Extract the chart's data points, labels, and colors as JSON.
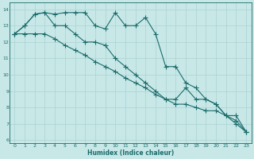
{
  "xlabel": "Humidex (Indice chaleur)",
  "xlim": [
    -0.5,
    23.5
  ],
  "ylim": [
    5.8,
    14.4
  ],
  "yticks": [
    6,
    7,
    8,
    9,
    10,
    11,
    12,
    13,
    14
  ],
  "xticks": [
    0,
    1,
    2,
    3,
    4,
    5,
    6,
    7,
    8,
    9,
    10,
    11,
    12,
    13,
    14,
    15,
    16,
    17,
    18,
    19,
    20,
    21,
    22,
    23
  ],
  "bg_color": "#c8e8e8",
  "line_color": "#1a6b6b",
  "grid_color": "#afd4d4",
  "line1_x": [
    0,
    1,
    2,
    3,
    4,
    5,
    6,
    7,
    8,
    9,
    10,
    11,
    12,
    13,
    14,
    15,
    16,
    17,
    18,
    19,
    20,
    21,
    22,
    23
  ],
  "line1_y": [
    12.5,
    13.0,
    13.7,
    13.8,
    13.7,
    13.8,
    13.8,
    13.8,
    13.0,
    12.8,
    13.8,
    13.0,
    13.0,
    13.5,
    12.5,
    10.5,
    10.5,
    9.5,
    9.2,
    8.5,
    8.2,
    7.5,
    7.0,
    6.5
  ],
  "line2_x": [
    0,
    1,
    2,
    3,
    4,
    5,
    6,
    7,
    8,
    9,
    10,
    11,
    12,
    13,
    14,
    15,
    16,
    17,
    18,
    19,
    20,
    21,
    22,
    23
  ],
  "line2_y": [
    12.5,
    13.0,
    13.7,
    13.8,
    13.0,
    13.0,
    12.5,
    12.0,
    12.0,
    11.8,
    11.0,
    10.5,
    10.0,
    9.5,
    9.0,
    8.5,
    8.5,
    9.2,
    8.5,
    8.5,
    8.2,
    7.5,
    7.5,
    6.5
  ],
  "line3_x": [
    0,
    1,
    2,
    3,
    4,
    5,
    6,
    7,
    8,
    9,
    10,
    11,
    12,
    13,
    14,
    15,
    16,
    17,
    18,
    19,
    20,
    21,
    22,
    23
  ],
  "line3_y": [
    12.5,
    12.5,
    12.5,
    12.5,
    12.2,
    11.8,
    11.5,
    11.2,
    10.8,
    10.5,
    10.2,
    9.8,
    9.5,
    9.2,
    8.8,
    8.5,
    8.2,
    8.2,
    8.0,
    7.8,
    7.8,
    7.5,
    7.2,
    6.5
  ]
}
